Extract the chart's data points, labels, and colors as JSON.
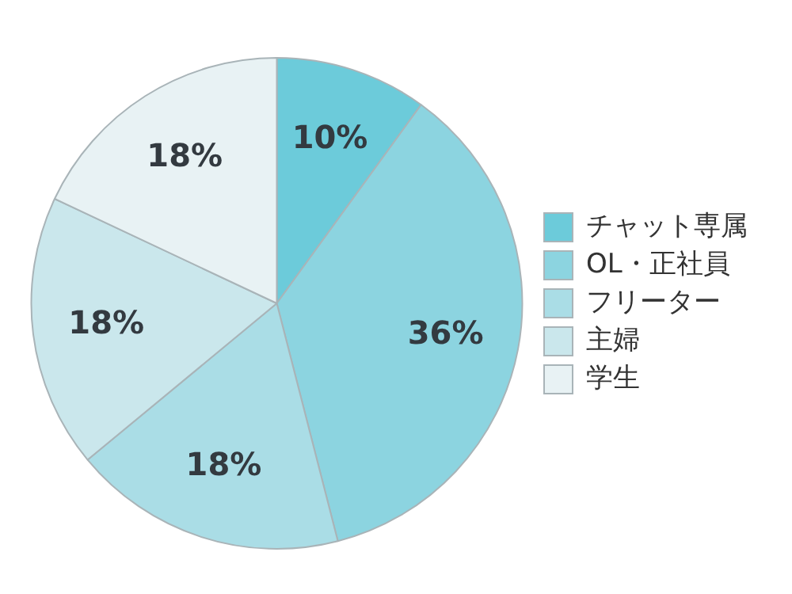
{
  "chart_data": {
    "type": "pie",
    "categories": [
      "チャット専属",
      "OL・正社員",
      "フリーター",
      "主婦",
      "学生"
    ],
    "values": [
      10,
      36,
      18,
      18,
      18
    ],
    "colors": [
      "#6ccbda",
      "#8cd4e0",
      "#aadde6",
      "#cae7ec",
      "#e8f2f4"
    ],
    "value_labels": [
      "10%",
      "36%",
      "18%",
      "18%",
      "18%"
    ],
    "legend": "right"
  }
}
